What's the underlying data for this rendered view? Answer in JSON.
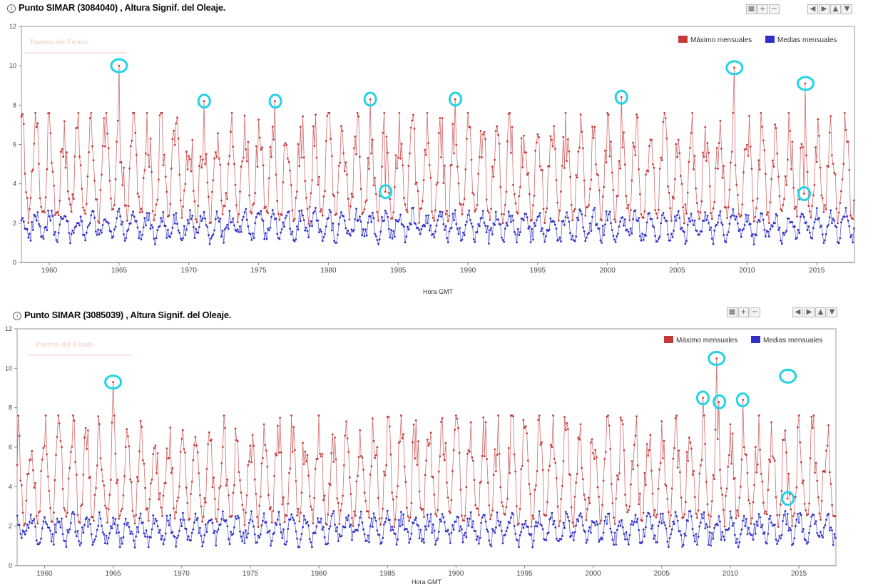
{
  "charts": [
    {
      "title": "Punto SIMAR (3084040) , Altura Signif. del Oleaje.",
      "xlabel": "Hora GMT",
      "watermark": "Puertos del Estado"
    },
    {
      "title": "Punto SIMAR (3085039) , Altura Signif. del Oleaje.",
      "xlabel": "Hora GMT",
      "watermark": "Puertos del Estado"
    }
  ],
  "toolbar": {
    "icons": [
      "chart-grid-icon",
      "zoom-in-icon",
      "zoom-out-icon",
      "arrow-left-icon",
      "arrow-right-icon",
      "arrow-up-icon",
      "arrow-down-icon"
    ]
  },
  "colors": {
    "max": "#c43a3a",
    "mean": "#3030c8",
    "highlight": "#22d3e6",
    "axis": "#888888"
  },
  "chart_data": [
    {
      "type": "line",
      "title": "Punto SIMAR (3084040) , Altura Signif. del Oleaje.",
      "xlabel": "Hora GMT",
      "ylabel": "",
      "xlim": [
        1958,
        2017.7
      ],
      "ylim": [
        0,
        12
      ],
      "xticks": [
        1960,
        1965,
        1970,
        1975,
        1980,
        1985,
        1990,
        1995,
        2000,
        2005,
        2010,
        2015
      ],
      "yticks": [
        0,
        2,
        4,
        6,
        8,
        10,
        12
      ],
      "legend": "top-right",
      "series": [
        {
          "name": "Máximo mensuales",
          "color": "#c43a3a",
          "peaks": [
            [
              1965.0,
              10.0
            ],
            [
              1971.1,
              8.2
            ],
            [
              1976.2,
              8.2
            ],
            [
              1983.0,
              8.3
            ],
            [
              1984.1,
              3.6
            ],
            [
              1989.1,
              8.3
            ],
            [
              2001.0,
              8.4
            ],
            [
              2009.1,
              9.9
            ],
            [
              2014.2,
              9.1
            ],
            [
              2014.1,
              3.5
            ]
          ]
        },
        {
          "name": "Medias mensuales",
          "color": "#3030c8"
        }
      ],
      "highlighted_points": [
        [
          1965.0,
          10.0
        ],
        [
          1971.1,
          8.2
        ],
        [
          1976.2,
          8.2
        ],
        [
          1983.0,
          8.3
        ],
        [
          1984.1,
          3.6
        ],
        [
          1989.1,
          8.3
        ],
        [
          2001.0,
          8.4
        ],
        [
          2009.1,
          9.9
        ],
        [
          2014.2,
          9.1
        ],
        [
          2014.1,
          3.5
        ]
      ]
    },
    {
      "type": "line",
      "title": "Punto SIMAR (3085039) , Altura Signif. del Oleaje.",
      "xlabel": "Hora GMT",
      "ylabel": "",
      "xlim": [
        1958,
        2017.7
      ],
      "ylim": [
        0,
        12
      ],
      "xticks": [
        1960,
        1965,
        1970,
        1975,
        1980,
        1985,
        1990,
        1995,
        2000,
        2005,
        2010,
        2015
      ],
      "yticks": [
        0,
        2,
        4,
        6,
        8,
        10,
        12
      ],
      "legend": "top-right",
      "series": [
        {
          "name": "Máximo mensuales",
          "color": "#c43a3a",
          "peaks": [
            [
              1965.0,
              9.3
            ],
            [
              2008.0,
              8.5
            ],
            [
              2009.0,
              10.5
            ],
            [
              2009.2,
              8.3
            ],
            [
              2010.9,
              8.4
            ],
            [
              2014.2,
              9.6
            ],
            [
              2014.2,
              3.4
            ]
          ]
        },
        {
          "name": "Medias mensuales",
          "color": "#3030c8"
        }
      ],
      "highlighted_points": [
        [
          1965.0,
          9.3
        ],
        [
          2008.0,
          8.5
        ],
        [
          2009.0,
          10.5
        ],
        [
          2009.2,
          8.3
        ],
        [
          2010.9,
          8.4
        ],
        [
          2014.2,
          9.6
        ],
        [
          2014.2,
          3.4
        ]
      ]
    }
  ]
}
